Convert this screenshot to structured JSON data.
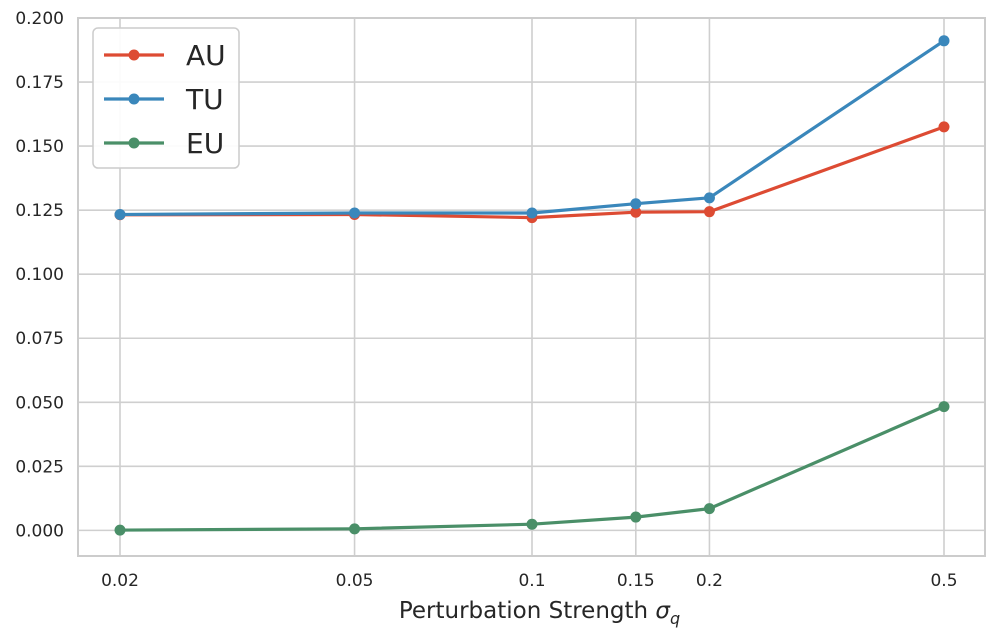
{
  "chart_data": {
    "type": "line",
    "x_scale": "log",
    "x": [
      0.02,
      0.05,
      0.1,
      0.15,
      0.2,
      0.5
    ],
    "x_tick_labels": [
      "0.02",
      "0.05",
      "0.1",
      "0.15",
      "0.2",
      "0.5"
    ],
    "y_ticks": [
      0.0,
      0.025,
      0.05,
      0.075,
      0.1,
      0.125,
      0.15,
      0.175,
      0.2
    ],
    "y_tick_labels": [
      "0.000",
      "0.025",
      "0.050",
      "0.075",
      "0.100",
      "0.125",
      "0.150",
      "0.175",
      "0.200"
    ],
    "ylim": [
      -0.01,
      0.2
    ],
    "xlabel": "Perturbation Strength",
    "xlabel_symbol": "σ",
    "xlabel_subscript": "q",
    "ylabel": "",
    "title": "",
    "grid": true,
    "legend_position": "top-left",
    "series": [
      {
        "name": "AU",
        "color": "#dd4b33",
        "values": [
          0.1232,
          0.1233,
          0.1221,
          0.1242,
          0.1244,
          0.1575
        ]
      },
      {
        "name": "TU",
        "color": "#3a87bb",
        "values": [
          0.1233,
          0.1239,
          0.1239,
          0.1275,
          0.1298,
          0.1911
        ]
      },
      {
        "name": "EU",
        "color": "#4a8f68",
        "values": [
          0.0001,
          0.0006,
          0.0024,
          0.0052,
          0.0085,
          0.0483
        ]
      }
    ]
  }
}
